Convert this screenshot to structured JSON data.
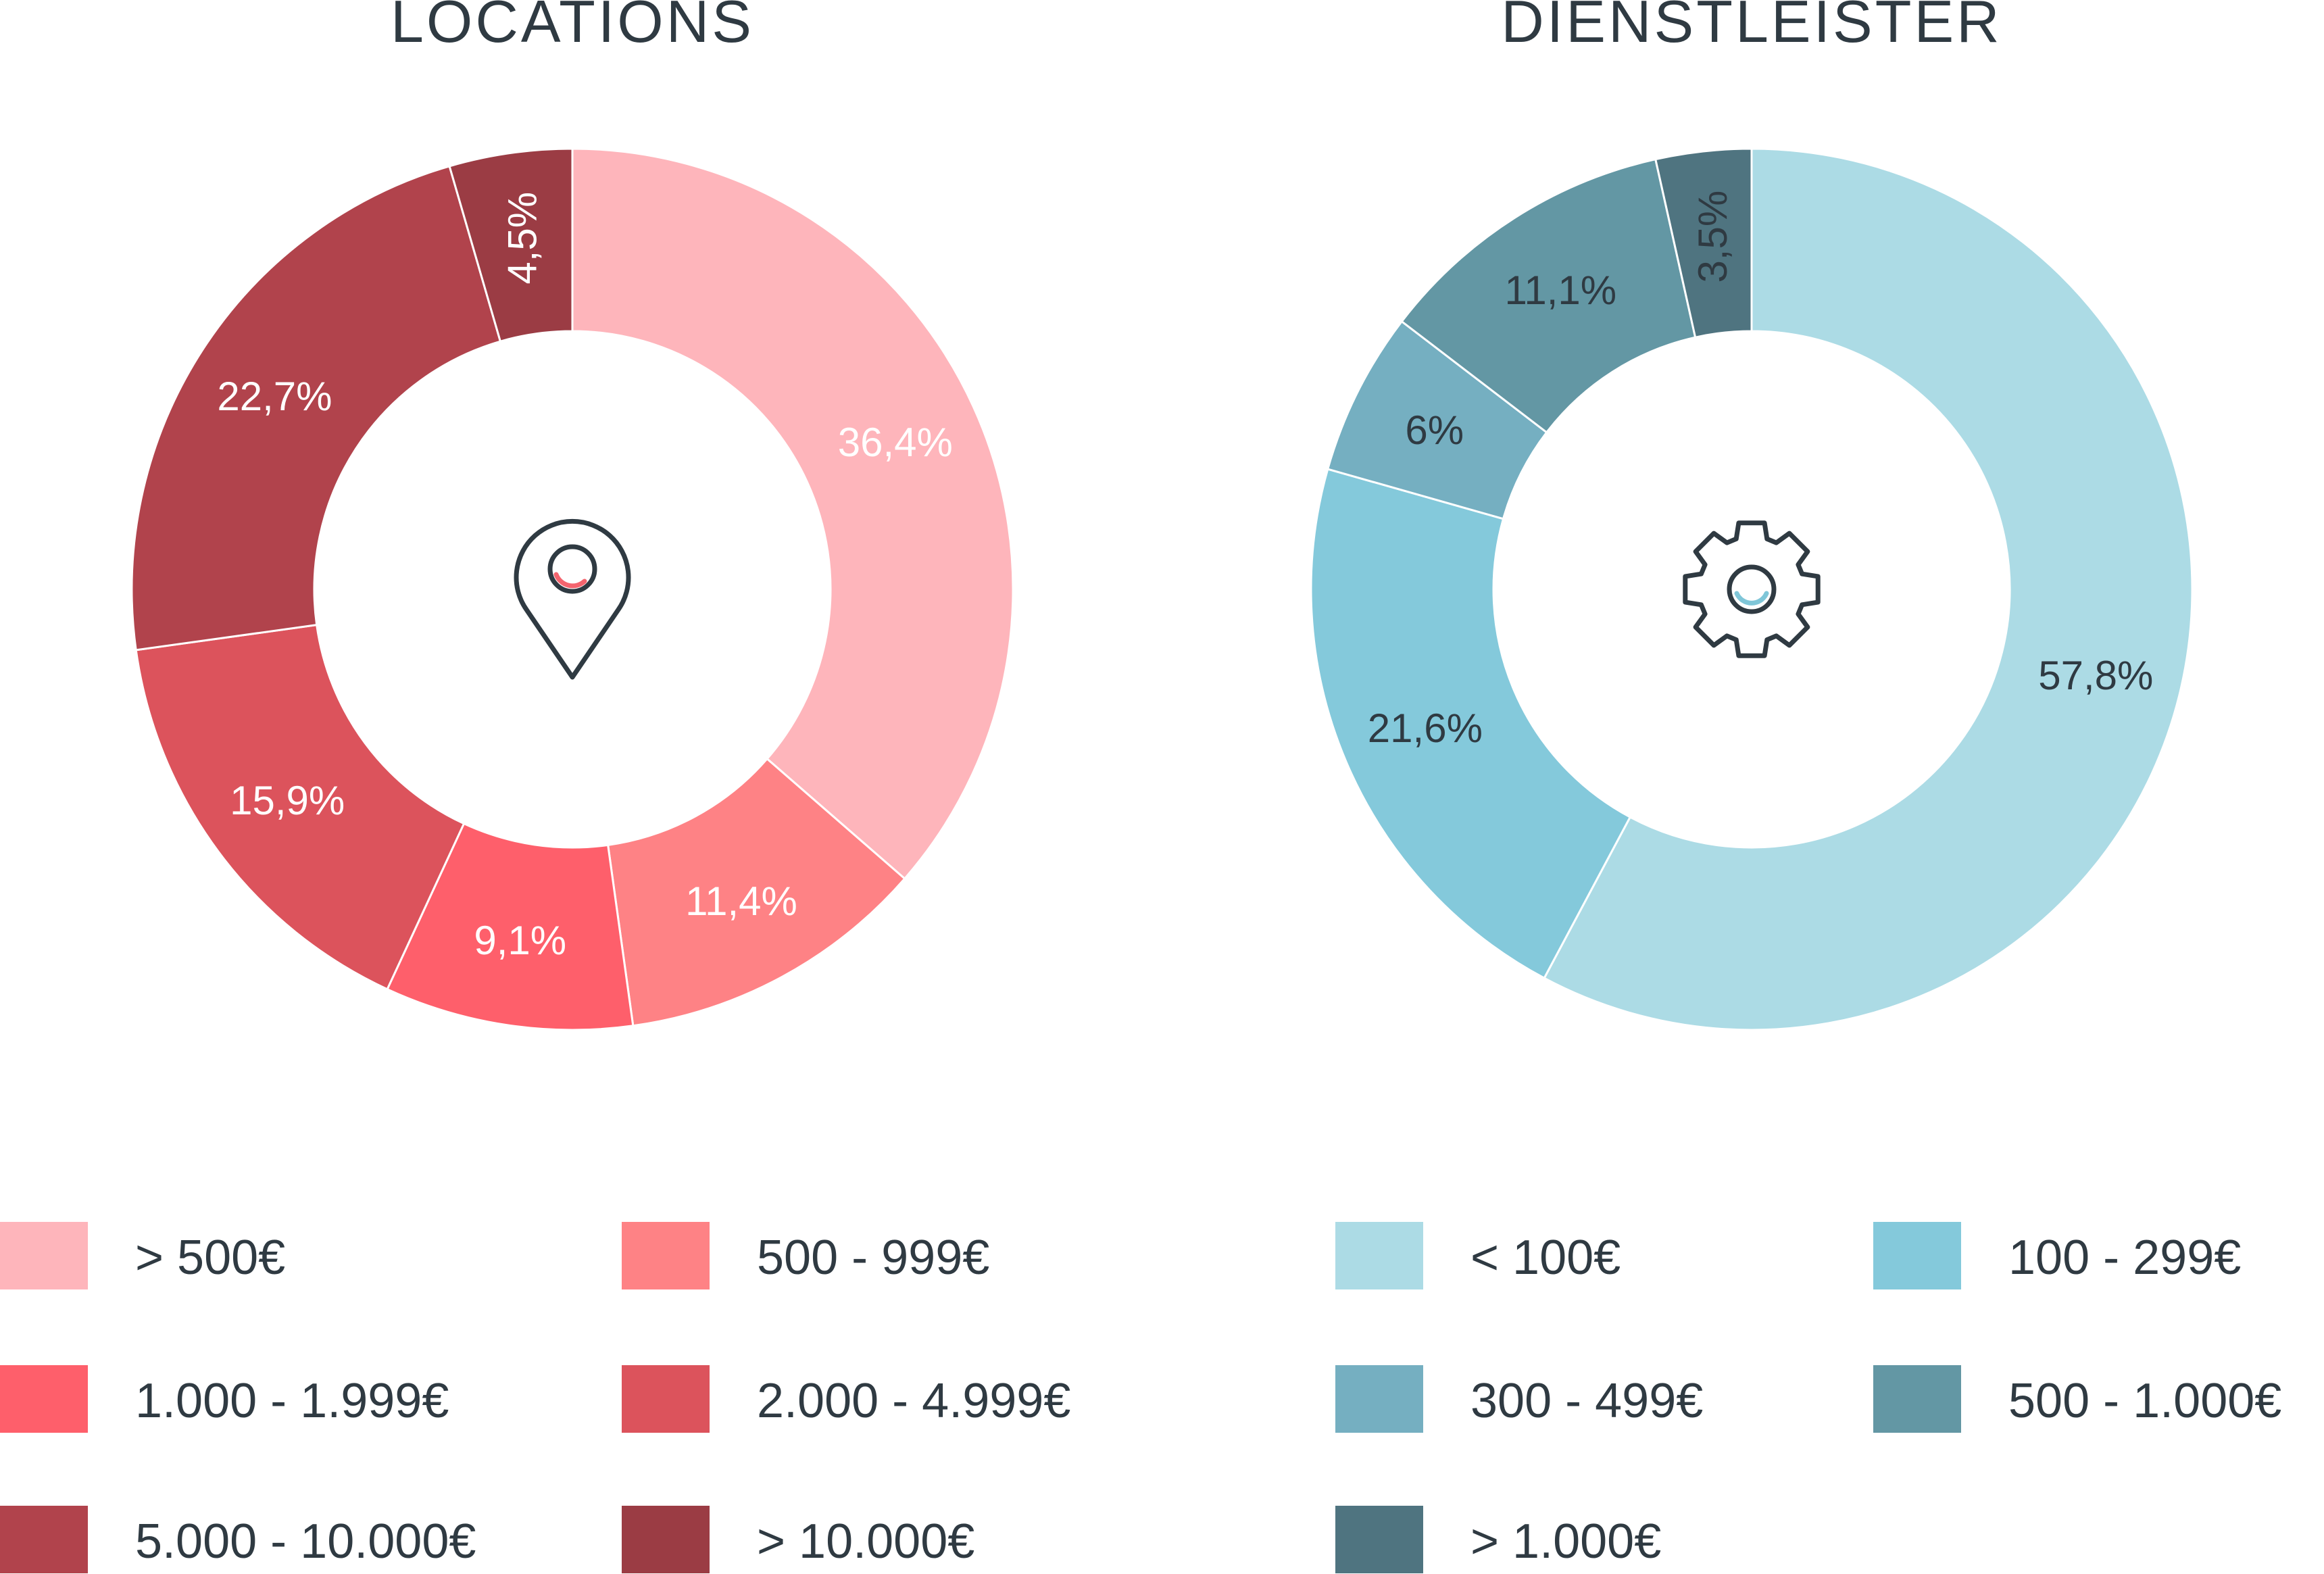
{
  "chart_data": [
    {
      "type": "pie",
      "title": "LOCATIONS",
      "icon": "location-pin-icon",
      "icon_accent": "#f4646e",
      "slices": [
        {
          "label": "> 500€",
          "value": 36.4,
          "display": "36,4%",
          "color": "#feb5bb",
          "label_color": "#ffffff"
        },
        {
          "label": "500 - 999€",
          "value": 11.4,
          "display": "11,4%",
          "color": "#fe8285",
          "label_color": "#ffffff"
        },
        {
          "label": "1.000 - 1.999€",
          "value": 9.1,
          "display": "9,1%",
          "color": "#fe5f6b",
          "label_color": "#ffffff"
        },
        {
          "label": "2.000 - 4.999€",
          "value": 15.9,
          "display": "15,9%",
          "color": "#dc535c",
          "label_color": "#ffffff"
        },
        {
          "label": "5.000 - 10.000€",
          "value": 22.7,
          "display": "22,7%",
          "color": "#b1434c",
          "label_color": "#ffffff"
        },
        {
          "label": "> 10.000€",
          "value": 4.5,
          "display": "4,5%",
          "color": "#9b3c44",
          "label_color": "#ffffff"
        }
      ]
    },
    {
      "type": "pie",
      "title": "DIENSTLEISTER",
      "icon": "gear-icon",
      "icon_accent": "#7fc6d8",
      "slices": [
        {
          "label": "< 100€",
          "value": 57.8,
          "display": "57,8%",
          "color": "#acdbe5",
          "label_color": "#2f3a42"
        },
        {
          "label": "100 - 299€",
          "value": 21.6,
          "display": "21,6%",
          "color": "#84c9db",
          "label_color": "#2f3a42"
        },
        {
          "label": "300 - 499€",
          "value": 6,
          "display": "6%",
          "color": "#75afc1",
          "label_color": "#2f3a42"
        },
        {
          "label": "500 - 1.000€",
          "value": 11.1,
          "display": "11,1%",
          "color": "#6397a4",
          "label_color": "#2f3a42"
        },
        {
          "label": "> 1.000€",
          "value": 3.5,
          "display": "3,5%",
          "color": "#4f7480",
          "label_color": "#2f3a42"
        }
      ]
    }
  ]
}
